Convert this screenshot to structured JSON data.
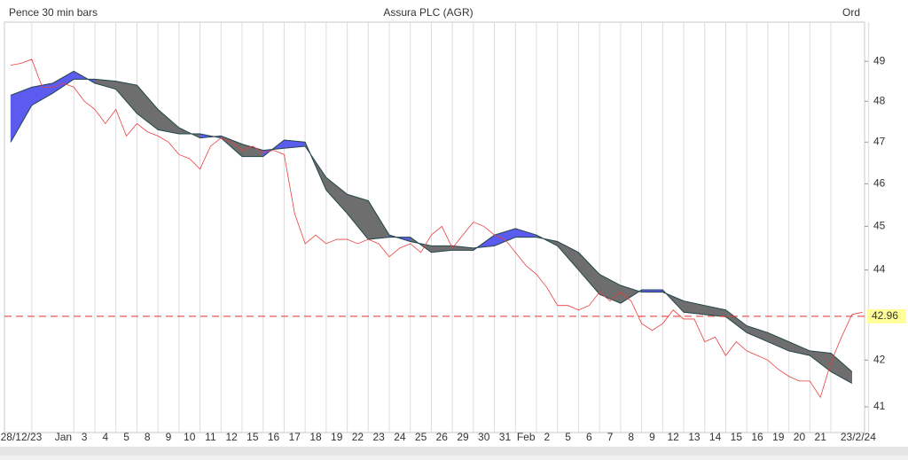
{
  "chart_data": {
    "type": "ichimoku",
    "title": "Assura PLC (AGR)",
    "subtitle": "Pence 30 min bars",
    "share_class": "Ord",
    "log_scale": true,
    "ylim": [
      40.46,
      50.0
    ],
    "yticks": [
      41,
      42,
      44,
      45,
      46,
      47,
      48,
      49
    ],
    "xlim": [
      -1.8,
      39.1
    ],
    "xticks": [
      {
        "value": -1,
        "label": "28/12/23"
      },
      {
        "value": 1,
        "label": "Jan"
      },
      {
        "value": 2,
        "label": "3"
      },
      {
        "value": 3,
        "label": "4"
      },
      {
        "value": 4,
        "label": "5"
      },
      {
        "value": 5,
        "label": "8"
      },
      {
        "value": 6,
        "label": "9"
      },
      {
        "value": 7,
        "label": "10"
      },
      {
        "value": 8,
        "label": "11"
      },
      {
        "value": 9,
        "label": "12"
      },
      {
        "value": 10,
        "label": "15"
      },
      {
        "value": 11,
        "label": "16"
      },
      {
        "value": 12,
        "label": "17"
      },
      {
        "value": 13,
        "label": "18"
      },
      {
        "value": 14,
        "label": "19"
      },
      {
        "value": 15,
        "label": "22"
      },
      {
        "value": 16,
        "label": "23"
      },
      {
        "value": 17,
        "label": "24"
      },
      {
        "value": 18,
        "label": "25"
      },
      {
        "value": 19,
        "label": "26"
      },
      {
        "value": 20,
        "label": "29"
      },
      {
        "value": 21,
        "label": "30"
      },
      {
        "value": 22,
        "label": "31"
      },
      {
        "value": 23,
        "label": "Feb"
      },
      {
        "value": 24,
        "label": "2"
      },
      {
        "value": 25,
        "label": "5"
      },
      {
        "value": 26,
        "label": "6"
      },
      {
        "value": 27,
        "label": "7"
      },
      {
        "value": 28,
        "label": "8"
      },
      {
        "value": 29,
        "label": "9"
      },
      {
        "value": 30,
        "label": "12"
      },
      {
        "value": 31,
        "label": "13"
      },
      {
        "value": 32,
        "label": "14"
      },
      {
        "value": 33,
        "label": "15"
      },
      {
        "value": 34,
        "label": "16"
      },
      {
        "value": 35,
        "label": "19"
      },
      {
        "value": 36,
        "label": "20"
      },
      {
        "value": 37,
        "label": "21"
      },
      {
        "value": 38.8,
        "label": "23/2/24"
      }
    ],
    "grid": true,
    "hline": 42.96,
    "hline_color": "#e03030",
    "series": [
      {
        "color": "#e84040",
        "x": [
          -1.5,
          -1,
          -0.5,
          0,
          0.5,
          1,
          1.5,
          2,
          2.5,
          3,
          3.5,
          4,
          4.5,
          5,
          5.5,
          6,
          6.5,
          7,
          7.5,
          8,
          8.5,
          9,
          9.5,
          10,
          10.5,
          11,
          11.5,
          12,
          12.5,
          13,
          13.5,
          14,
          14.5,
          15,
          15.5,
          16,
          16.5,
          17,
          17.5,
          18,
          18.5,
          19,
          19.5,
          20,
          20.5,
          21,
          21.5,
          22,
          22.5,
          23,
          23.5,
          24,
          24.5,
          25,
          25.5,
          26,
          26.5,
          27,
          27.5,
          28,
          28.5,
          29,
          29.5,
          30,
          30.5,
          31,
          31.5,
          32,
          32.5,
          33,
          33.5,
          34,
          34.5,
          35,
          35.5,
          36,
          36.5,
          37,
          37.5,
          38,
          38.5,
          39
        ],
        "values": [
          48.9,
          48.95,
          49.05,
          48.35,
          48.35,
          48.45,
          48.35,
          48.0,
          47.8,
          47.45,
          47.8,
          47.15,
          47.45,
          47.25,
          47.15,
          47.0,
          46.7,
          46.6,
          46.35,
          46.9,
          47.1,
          47.0,
          46.8,
          46.9,
          46.75,
          46.8,
          46.7,
          45.3,
          44.6,
          44.8,
          44.6,
          44.7,
          44.7,
          44.6,
          44.7,
          44.6,
          44.3,
          44.5,
          44.6,
          44.4,
          44.8,
          45.0,
          44.5,
          44.8,
          45.1,
          45.0,
          44.8,
          44.7,
          44.4,
          44.1,
          43.9,
          43.6,
          43.2,
          43.2,
          43.1,
          43.2,
          43.5,
          43.3,
          43.5,
          43.3,
          42.8,
          42.65,
          42.8,
          43.1,
          42.9,
          42.9,
          42.4,
          42.5,
          42.1,
          42.4,
          42.2,
          42.1,
          42.0,
          41.8,
          41.65,
          41.55,
          41.55,
          41.2,
          41.95,
          42.5,
          43.0,
          43.05
        ]
      }
    ],
    "cloud": {
      "up_color": "#5b5bf0",
      "down_color": "#6e6e6e",
      "edge_color": "#24474a",
      "x": [
        -1.5,
        -0.5,
        0.5,
        1.5,
        2.5,
        3.5,
        4.5,
        5.5,
        6.5,
        7.5,
        8.5,
        9.5,
        10.5,
        11.5,
        12.5,
        13.5,
        14.5,
        15.5,
        16.5,
        17.5,
        18.5,
        19.5,
        20.5,
        21.5,
        22.5,
        23.5,
        24.5,
        25.5,
        26.5,
        27.5,
        28.5,
        29.5,
        30.5,
        31.5,
        32.5,
        33.5,
        34.5,
        35.5,
        36.5,
        37.5,
        38.5
      ],
      "span_a": [
        48.15,
        48.35,
        48.45,
        48.75,
        48.45,
        48.3,
        47.7,
        47.3,
        47.2,
        47.2,
        47.1,
        46.65,
        46.65,
        47.05,
        47.0,
        45.85,
        45.3,
        44.7,
        44.75,
        44.75,
        44.4,
        44.45,
        44.45,
        44.8,
        44.95,
        44.8,
        44.55,
        44.0,
        43.45,
        43.25,
        43.55,
        43.55,
        43.05,
        43.0,
        42.95,
        42.6,
        42.4,
        42.2,
        42.1,
        41.75,
        41.5
      ],
      "span_b": [
        47.0,
        47.9,
        48.2,
        48.55,
        48.55,
        48.5,
        48.4,
        47.8,
        47.35,
        47.1,
        47.15,
        46.95,
        46.8,
        46.85,
        46.9,
        46.15,
        45.75,
        45.6,
        44.8,
        44.65,
        44.55,
        44.55,
        44.5,
        44.55,
        44.75,
        44.75,
        44.65,
        44.4,
        43.9,
        43.65,
        43.5,
        43.5,
        43.3,
        43.2,
        43.1,
        42.75,
        42.6,
        42.4,
        42.2,
        42.15,
        41.75
      ]
    }
  }
}
